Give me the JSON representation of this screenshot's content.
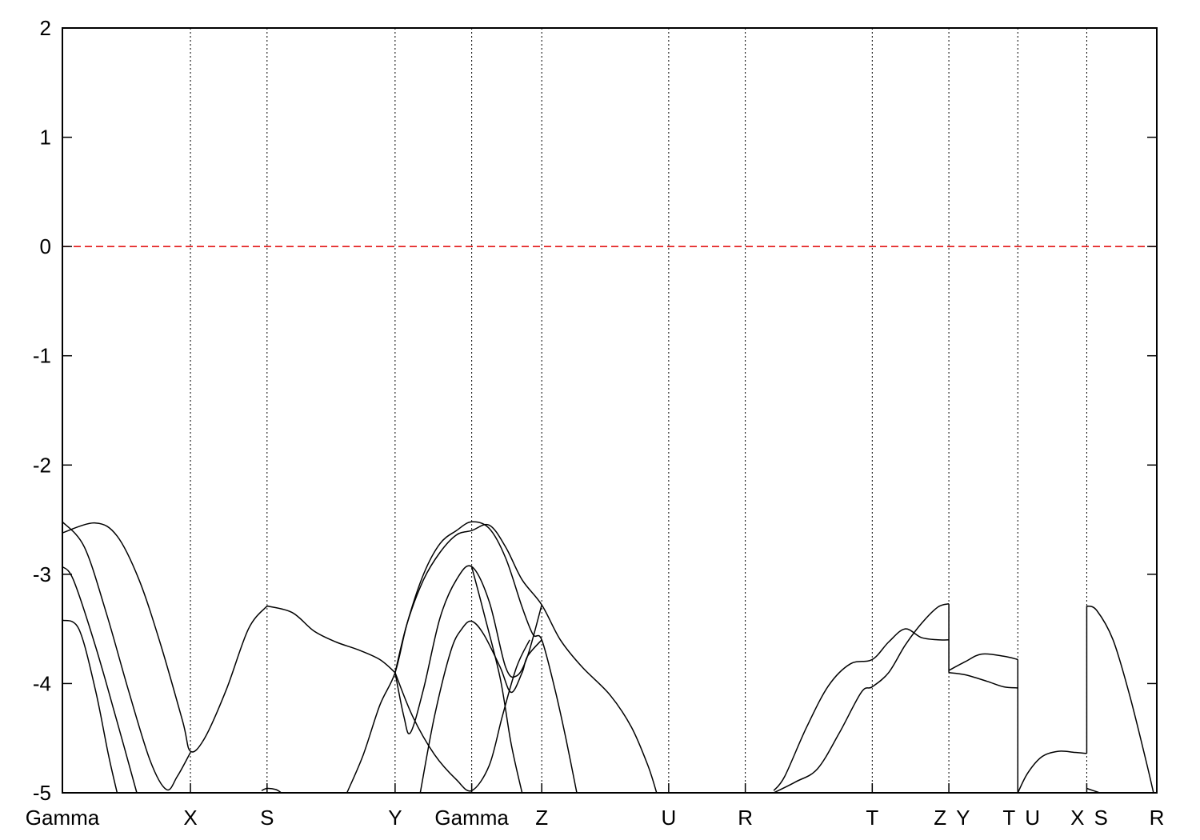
{
  "chart_data": {
    "type": "line",
    "title": "",
    "xlabel": "",
    "ylabel": "",
    "ylim": [
      -5,
      2
    ],
    "xlim": [
      0,
      10.0
    ],
    "yticks": [
      2,
      1,
      0,
      -1,
      -2,
      -3,
      -4,
      -5
    ],
    "ytick_labels": [
      "2",
      "1",
      "0",
      "-1",
      "-2",
      "-3",
      "-4",
      "-5"
    ],
    "kpoints": [
      {
        "label": "Gamma",
        "x": 0.0
      },
      {
        "label": "X",
        "x": 1.17
      },
      {
        "label": "S",
        "x": 1.87
      },
      {
        "label": "Y",
        "x": 3.04
      },
      {
        "label": "Gamma",
        "x": 3.74
      },
      {
        "label": "Z",
        "x": 4.38
      },
      {
        "label": "U",
        "x": 5.54
      },
      {
        "label": "R",
        "x": 6.24
      },
      {
        "label": "T",
        "x": 7.4
      },
      {
        "label": "Z",
        "x": 8.1
      },
      {
        "label": "Y",
        "x": 8.1
      },
      {
        "label": "T",
        "x": 8.73
      },
      {
        "label": "U",
        "x": 8.73
      },
      {
        "label": "X",
        "x": 9.36
      },
      {
        "label": "S",
        "x": 9.36
      },
      {
        "label": "R",
        "x": 10.0
      }
    ],
    "fermi_level": 0,
    "grid": false,
    "series": [
      {
        "x": [
          0.0,
          0.3,
          0.5,
          0.7,
          0.9,
          1.1,
          1.17,
          1.3,
          1.5,
          1.7,
          1.87
        ],
        "values": [
          -2.62,
          -2.53,
          -2.65,
          -3.05,
          -3.65,
          -4.35,
          -4.62,
          -4.5,
          -4.05,
          -3.5,
          -3.29
        ]
      },
      {
        "x": [
          1.87,
          2.1,
          2.3,
          2.5,
          2.7,
          2.9,
          3.04
        ],
        "values": [
          -3.29,
          -3.35,
          -3.52,
          -3.62,
          -3.69,
          -3.78,
          -3.9
        ]
      },
      {
        "x": [
          0.0,
          0.2,
          0.4,
          0.6,
          0.8,
          0.95,
          1.05,
          1.17
        ],
        "values": [
          -2.52,
          -2.75,
          -3.35,
          -4.05,
          -4.7,
          -4.97,
          -4.85,
          -4.63
        ]
      },
      {
        "x": [
          0.0,
          0.1,
          0.3,
          0.5,
          0.68
        ],
        "values": [
          -2.93,
          -3.05,
          -3.65,
          -4.35,
          -5.0
        ]
      },
      {
        "x": [
          0.0,
          0.15,
          0.3,
          0.42,
          0.5
        ],
        "values": [
          -3.42,
          -3.5,
          -4.05,
          -4.65,
          -5.0
        ]
      },
      {
        "x": [
          3.04,
          3.15,
          3.3,
          3.45,
          3.6,
          3.74,
          3.9,
          4.05,
          4.2,
          4.38,
          4.55,
          4.75,
          5.0,
          5.2,
          5.35,
          5.43
        ],
        "values": [
          -3.9,
          -3.45,
          -3.05,
          -2.8,
          -2.64,
          -2.6,
          -2.55,
          -2.75,
          -3.05,
          -3.28,
          -3.6,
          -3.85,
          -4.1,
          -4.4,
          -4.75,
          -5.0
        ]
      },
      {
        "x": [
          2.6,
          2.75,
          2.9,
          3.04,
          3.15,
          3.3,
          3.45,
          3.6,
          3.74,
          3.9,
          4.05,
          4.2,
          4.3,
          4.38,
          4.5,
          4.6,
          4.7
        ],
        "values": [
          -5.0,
          -4.65,
          -4.2,
          -3.9,
          -3.45,
          -3.0,
          -2.72,
          -2.6,
          -2.52,
          -2.58,
          -2.85,
          -3.3,
          -3.55,
          -3.6,
          -4.05,
          -4.5,
          -5.0
        ]
      },
      {
        "x": [
          3.04,
          3.12,
          3.18,
          3.3,
          3.45,
          3.6,
          3.74,
          3.9,
          4.05,
          4.15,
          4.25,
          4.38
        ],
        "values": [
          -3.9,
          -4.3,
          -4.45,
          -4.05,
          -3.4,
          -3.05,
          -2.93,
          -3.25,
          -3.85,
          -3.93,
          -3.75,
          -3.28
        ]
      },
      {
        "x": [
          3.04,
          3.2,
          3.4,
          3.6,
          3.74,
          3.9,
          4.02,
          4.15,
          4.27
        ],
        "values": [
          -3.9,
          -4.3,
          -4.65,
          -4.88,
          -4.98,
          -4.75,
          -4.3,
          -3.85,
          -3.6
        ]
      },
      {
        "x": [
          3.27,
          3.4,
          3.55,
          3.65,
          3.74,
          3.85,
          4.0,
          4.1,
          4.2,
          4.25,
          4.38
        ],
        "values": [
          -5.0,
          -4.3,
          -3.7,
          -3.5,
          -3.43,
          -3.55,
          -3.85,
          -4.08,
          -3.9,
          -3.75,
          -3.6
        ]
      },
      {
        "x": [
          3.74,
          3.85,
          4.0,
          4.1,
          4.2
        ],
        "values": [
          -2.93,
          -3.35,
          -3.95,
          -4.55,
          -5.0
        ]
      },
      {
        "x": [
          1.82,
          1.87,
          1.95,
          2.0
        ],
        "values": [
          -4.98,
          -4.96,
          -4.97,
          -5.0
        ]
      },
      {
        "x": [
          6.5,
          6.6,
          6.8,
          7.0,
          7.2,
          7.4,
          7.55,
          7.7,
          7.85,
          8.0,
          8.1
        ],
        "values": [
          -4.98,
          -4.85,
          -4.4,
          -4.02,
          -3.82,
          -3.78,
          -3.62,
          -3.5,
          -3.58,
          -3.6,
          -3.6
        ]
      },
      {
        "x": [
          6.5,
          6.7,
          6.9,
          7.1,
          7.3,
          7.4,
          7.55,
          7.7,
          7.85,
          8.0,
          8.1
        ],
        "values": [
          -5.0,
          -4.9,
          -4.78,
          -4.45,
          -4.08,
          -4.03,
          -3.9,
          -3.65,
          -3.45,
          -3.3,
          -3.27
        ]
      },
      {
        "x": [
          8.1,
          8.25,
          8.4,
          8.6,
          8.73
        ],
        "values": [
          -3.88,
          -3.8,
          -3.73,
          -3.75,
          -3.78
        ]
      },
      {
        "x": [
          8.1,
          8.25,
          8.45,
          8.6,
          8.73
        ],
        "values": [
          -3.9,
          -3.92,
          -3.98,
          -4.03,
          -4.04
        ]
      },
      {
        "x": [
          8.73,
          8.82,
          8.95,
          9.1,
          9.25,
          9.36
        ],
        "values": [
          -5.0,
          -4.82,
          -4.67,
          -4.62,
          -4.63,
          -4.64
        ]
      },
      {
        "x": [
          9.36,
          9.45,
          9.6,
          9.75,
          9.9,
          9.97
        ],
        "values": [
          -3.29,
          -3.33,
          -3.6,
          -4.1,
          -4.7,
          -5.0
        ]
      },
      {
        "x": [
          9.36,
          9.42,
          9.48
        ],
        "values": [
          -4.96,
          -4.98,
          -5.0
        ]
      }
    ]
  }
}
